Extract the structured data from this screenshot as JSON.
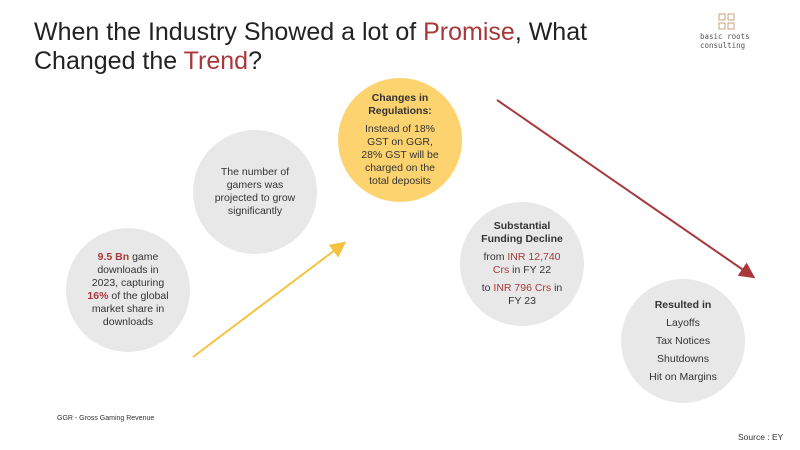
{
  "title": [
    {
      "text": "When the Industry Showed a lot of "
    },
    {
      "text": "Promise",
      "color": "#a8383b"
    },
    {
      "text": ", What Changed the "
    },
    {
      "text": "Trend",
      "color": "#a8383b"
    },
    {
      "text": "?"
    }
  ],
  "logo": [
    "basic roots",
    "consulting"
  ],
  "circles": [
    {
      "fill": "#e8e8e8",
      "paragraphs": [
        [
          {
            "text": "9.5 Bn",
            "color": "#a8383b",
            "bold": true
          },
          {
            "text": " game downloads in 2023, capturing "
          },
          {
            "text": "16%",
            "color": "#a8383b",
            "bold": true
          },
          {
            "text": " of the global market share in downloads"
          }
        ]
      ]
    },
    {
      "fill": "#e8e8e8",
      "paragraphs": [
        [
          {
            "text": "The number of gamers was projected to grow significantly"
          }
        ]
      ]
    },
    {
      "fill": "#fdd36f",
      "paragraphs": [
        [
          {
            "text": "Changes in Regulations:",
            "bold": true
          }
        ],
        [
          {
            "text": "Instead of 18% GST on GGR, 28% GST will be charged on the total deposits"
          }
        ]
      ]
    },
    {
      "fill": "#e8e8e8",
      "paragraphs": [
        [
          {
            "text": "Substantial Funding Decline",
            "bold": true
          }
        ],
        [
          {
            "text": "from "
          },
          {
            "text": "INR 12,740 Crs",
            "color": "#a8383b"
          },
          {
            "text": " in FY 22"
          }
        ],
        [
          {
            "text": "to "
          },
          {
            "text": "INR 796 Crs",
            "color": "#a8383b"
          },
          {
            "text": " in FY 23"
          }
        ]
      ]
    },
    {
      "fill": "#e8e8e8",
      "paragraphs": [
        [
          {
            "text": "Resulted in",
            "bold": true
          }
        ],
        [
          {
            "text": "Layoffs"
          }
        ],
        [
          {
            "text": "Tax Notices"
          }
        ],
        [
          {
            "text": "Shutdowns"
          }
        ],
        [
          {
            "text": "Hit on Margins"
          }
        ]
      ]
    }
  ],
  "footnote": "GGR - Gross Gaming Revenue",
  "source": "Source : EY"
}
